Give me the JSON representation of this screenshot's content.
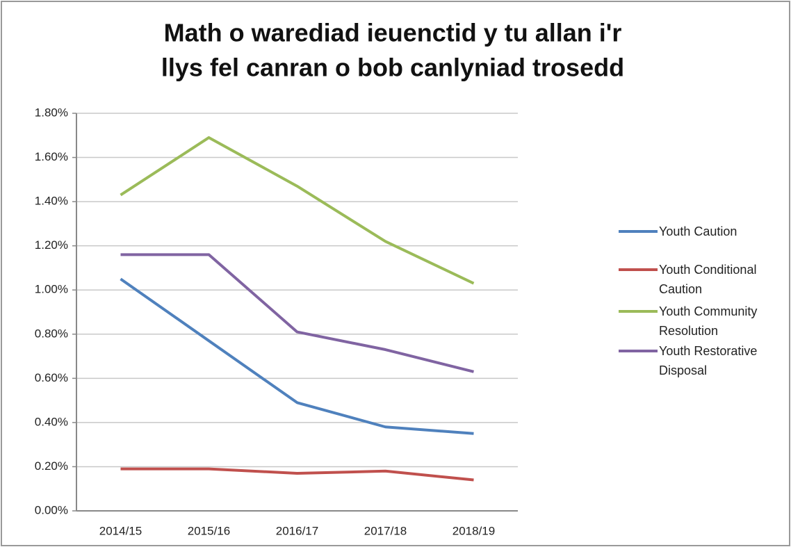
{
  "chart_data": {
    "type": "line",
    "title": [
      "Math o warediad ieuenctid y tu allan i'r",
      "llys fel canran o bob canlyniad trosedd"
    ],
    "categories": [
      "2014/15",
      "2015/16",
      "2016/17",
      "2017/18",
      "2018/19"
    ],
    "series": [
      {
        "name": "Youth Caution",
        "color": "#4f81bd",
        "values": [
          1.05,
          0.77,
          0.49,
          0.38,
          0.35
        ]
      },
      {
        "name": "Youth Conditional Caution",
        "color": "#c0504d",
        "values": [
          0.19,
          0.19,
          0.17,
          0.18,
          0.14
        ]
      },
      {
        "name": "Youth Community Resolution",
        "color": "#9bbb59",
        "values": [
          1.43,
          1.69,
          1.47,
          1.22,
          1.03
        ]
      },
      {
        "name": "Youth Restorative Disposal",
        "color": "#8064a2",
        "values": [
          1.16,
          1.16,
          0.81,
          0.73,
          0.63
        ]
      }
    ],
    "ylim": [
      0,
      1.8
    ],
    "yticks": [
      {
        "value": 0,
        "label": "0.00%"
      },
      {
        "value": 0.2,
        "label": "0.20%"
      },
      {
        "value": 0.4,
        "label": "0.40%"
      },
      {
        "value": 0.6,
        "label": "0.60%"
      },
      {
        "value": 0.8,
        "label": "0.80%"
      },
      {
        "value": 1.0,
        "label": "1.00%"
      },
      {
        "value": 1.2,
        "label": "1.20%"
      },
      {
        "value": 1.4,
        "label": "1.40%"
      },
      {
        "value": 1.6,
        "label": "1.60%"
      },
      {
        "value": 1.8,
        "label": "1.80%"
      }
    ],
    "grid": true,
    "legend": "right"
  }
}
